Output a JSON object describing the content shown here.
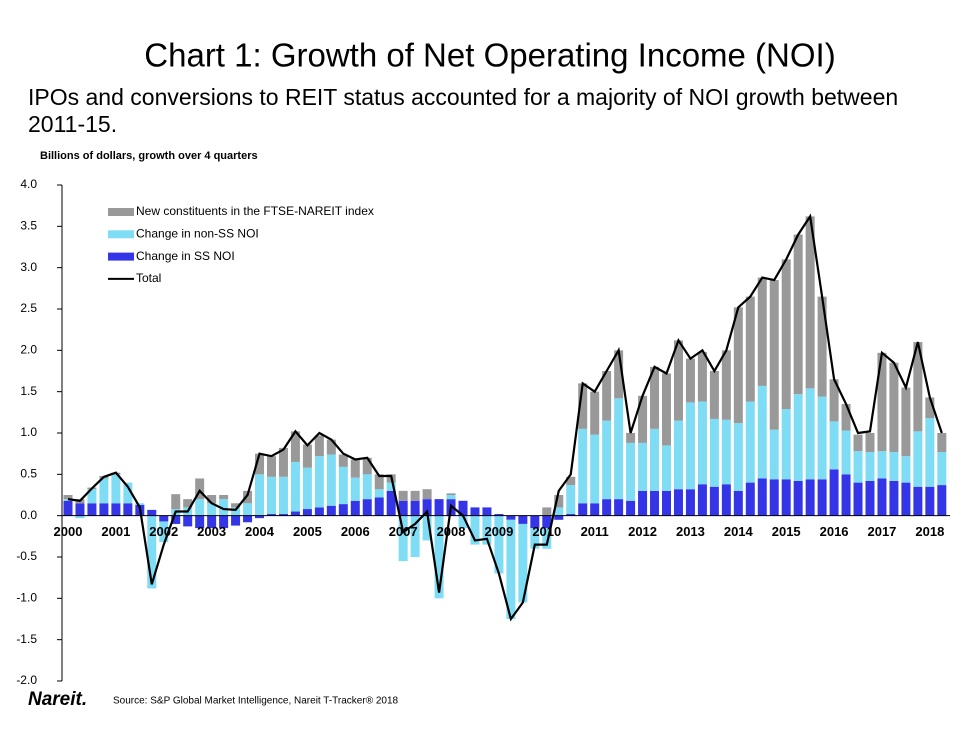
{
  "chart_data": {
    "type": "bar",
    "title": "Chart 1: Growth of Net Operating Income (NOI)",
    "subtitle": "IPOs and conversions to REIT status accounted for a majority of NOI growth between 2011-15.",
    "y_label": "Billions of dollars, growth over 4 quarters",
    "source": "Source: S&P Global Market Intelligence, Nareit T-Tracker® 2018",
    "logo": "Nareit.",
    "stacked": true,
    "legend": "upper left",
    "categories": [
      "2000",
      null,
      null,
      null,
      "2001",
      null,
      null,
      null,
      "2002",
      null,
      null,
      null,
      "2003",
      null,
      null,
      null,
      "2004",
      null,
      null,
      null,
      "2005",
      null,
      null,
      null,
      "2006",
      null,
      null,
      null,
      "2007",
      null,
      null,
      null,
      "2008",
      null,
      null,
      null,
      "2009",
      null,
      null,
      null,
      "2010",
      null,
      null,
      null,
      "2011",
      null,
      null,
      null,
      "2012",
      null,
      null,
      null,
      "2013",
      null,
      null,
      null,
      "2014",
      null,
      null,
      null,
      "2015",
      null,
      null,
      null,
      "2016",
      null,
      null,
      null,
      "2017",
      null,
      null,
      null,
      "2018",
      null
    ],
    "series": [
      {
        "name": "New constituents in the FTSE-NAREIT index",
        "color": "#999999",
        "values": [
          0.05,
          0.05,
          0.02,
          0.03,
          0.02,
          0,
          0,
          0,
          0,
          0.18,
          0.1,
          0.25,
          0.1,
          0.05,
          0.05,
          0.15,
          0.25,
          0.25,
          0.35,
          0.37,
          0.28,
          0.25,
          0.18,
          0.15,
          0.22,
          0.2,
          0.18,
          0.1,
          0.12,
          0.12,
          0.12,
          0,
          0.02,
          0,
          0,
          0,
          0,
          0,
          0,
          0,
          0.1,
          0.15,
          0.1,
          0.55,
          0.52,
          0.6,
          0.58,
          0.12,
          0.57,
          0.75,
          0.87,
          0.97,
          0.53,
          0.6,
          0.58,
          0.84,
          1.4,
          1.27,
          1.31,
          1.81,
          1.81,
          1.93,
          2.08,
          1.21,
          0.51,
          0.32,
          0.2,
          0.23,
          1.19,
          1.08,
          0.83,
          1.08,
          0.25,
          0.23
        ]
      },
      {
        "name": "Change in non-SS NOI",
        "color": "#7fdcf5",
        "values": [
          0.02,
          -0.03,
          0.17,
          0.3,
          0.35,
          0.25,
          0.02,
          -0.88,
          -0.25,
          0.08,
          0.1,
          0.2,
          0.15,
          0.2,
          0.1,
          0.15,
          0.5,
          0.45,
          0.45,
          0.6,
          0.5,
          0.62,
          0.62,
          0.45,
          0.28,
          0.3,
          0.1,
          0.1,
          -0.55,
          -0.5,
          -0.3,
          -1.0,
          0.05,
          -0.15,
          -0.35,
          -0.35,
          -0.7,
          -1.2,
          -0.95,
          -0.25,
          -0.25,
          0.1,
          0.35,
          0.9,
          0.83,
          0.95,
          1.22,
          0.7,
          0.58,
          0.75,
          0.55,
          0.83,
          1.05,
          1.0,
          0.82,
          0.78,
          0.82,
          0.98,
          1.12,
          0.6,
          0.85,
          1.05,
          1.1,
          1.0,
          0.58,
          0.53,
          0.38,
          0.35,
          0.33,
          0.35,
          0.32,
          0.67,
          0.83,
          0.4
        ]
      },
      {
        "name": "Change in SS NOI",
        "color": "#3535e8",
        "values": [
          0.18,
          0.15,
          0.15,
          0.15,
          0.15,
          0.15,
          0.13,
          0.07,
          -0.07,
          -0.1,
          -0.13,
          -0.15,
          -0.15,
          -0.15,
          -0.12,
          -0.08,
          -0.03,
          0.02,
          0.02,
          0.05,
          0.08,
          0.1,
          0.12,
          0.14,
          0.18,
          0.2,
          0.22,
          0.3,
          0.18,
          0.18,
          0.2,
          0.2,
          0.2,
          0.18,
          0.1,
          0.1,
          0.02,
          -0.05,
          -0.1,
          -0.15,
          -0.15,
          -0.05,
          0.02,
          0.15,
          0.15,
          0.2,
          0.2,
          0.18,
          0.3,
          0.3,
          0.3,
          0.32,
          0.32,
          0.38,
          0.35,
          0.38,
          0.3,
          0.4,
          0.45,
          0.44,
          0.44,
          0.42,
          0.44,
          0.44,
          0.56,
          0.5,
          0.4,
          0.42,
          0.45,
          0.42,
          0.4,
          0.35,
          0.35,
          0.37
        ]
      },
      {
        "name": "Total",
        "color": "#000000",
        "type": "line",
        "values": [
          0.2,
          0.18,
          0.33,
          0.47,
          0.52,
          0.35,
          0.1,
          -0.83,
          -0.35,
          0.05,
          0.05,
          0.3,
          0.15,
          0.08,
          0.07,
          0.25,
          0.75,
          0.72,
          0.8,
          1.02,
          0.85,
          1.0,
          0.92,
          0.75,
          0.68,
          0.7,
          0.48,
          0.48,
          -0.2,
          -0.1,
          0.05,
          -0.93,
          0.12,
          0,
          -0.3,
          -0.28,
          -0.7,
          -1.25,
          -1.05,
          -0.35,
          -0.35,
          0.3,
          0.5,
          1.6,
          1.5,
          1.75,
          2.0,
          1.0,
          1.45,
          1.8,
          1.72,
          2.12,
          1.9,
          2.0,
          1.75,
          2.0,
          2.52,
          2.65,
          2.88,
          2.85,
          3.1,
          3.4,
          3.62,
          2.65,
          1.65,
          1.35,
          1.0,
          1.02,
          1.97,
          1.85,
          1.55,
          2.1,
          1.43,
          1.0
        ]
      }
    ],
    "ylim": [
      -2,
      4
    ],
    "yticks": [
      {
        "value": -2,
        "label": "-2.0"
      },
      {
        "value": -1.5,
        "label": "-1.5"
      },
      {
        "value": -1,
        "label": "-1.0"
      },
      {
        "value": -0.5,
        "label": "-0.5"
      },
      {
        "value": 0,
        "label": "0.0"
      },
      {
        "value": 0.5,
        "label": "0.5"
      },
      {
        "value": 1,
        "label": "1.0"
      },
      {
        "value": 1.5,
        "label": "1.5"
      },
      {
        "value": 2,
        "label": "2.0"
      },
      {
        "value": 2.5,
        "label": "2.5"
      },
      {
        "value": 3,
        "label": "3.0"
      },
      {
        "value": 3.5,
        "label": "3.5"
      },
      {
        "value": 4,
        "label": "4.0"
      }
    ]
  }
}
